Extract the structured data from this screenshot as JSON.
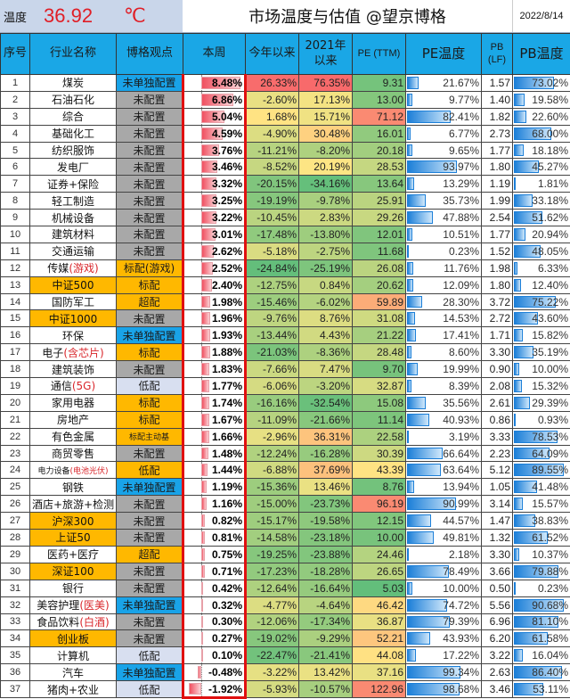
{
  "header": {
    "temp_label": "温度",
    "temp_value": "36.92",
    "temp_unit": "℃",
    "title": "市场温度与估值 @望京博格",
    "date": "2022/8/14"
  },
  "columns": {
    "idx": "序号",
    "name": "行业名称",
    "view": "博格观点",
    "week": "本周",
    "ytd": "今年以来",
    "since2021": "2021年以来",
    "pe": "PE (TTM)",
    "pe_temp": "PE温度",
    "pb": "PB (LF)",
    "pb_temp": "PB温度"
  },
  "colors": {
    "header_blue": "#1aa7e6",
    "temp_red": "#e01e26",
    "highlight_border": "#e01010",
    "orange": "#ffb800",
    "gray": "#a8a8a8",
    "blue_tag": "#19a3e8",
    "lavender": "#d8dff0"
  },
  "rows": [
    {
      "idx": "1",
      "name": "煤炭",
      "name_hl": "",
      "name_style": "",
      "view": "未单独配置",
      "view_style": "blue",
      "week": "8.48%",
      "ytd": "26.33%",
      "s2021": "76.35%",
      "pe": "9.31",
      "pe_temp": "21.67%",
      "pb": "1.57",
      "pb_temp": "73.02%"
    },
    {
      "idx": "2",
      "name": "石油石化",
      "name_hl": "",
      "name_style": "",
      "view": "未配置",
      "view_style": "gray",
      "week": "6.86%",
      "ytd": "-2.60%",
      "s2021": "17.13%",
      "pe": "13.00",
      "pe_temp": "9.77%",
      "pb": "1.40",
      "pb_temp": "19.58%"
    },
    {
      "idx": "3",
      "name": "综合",
      "name_hl": "",
      "name_style": "",
      "view": "未配置",
      "view_style": "gray",
      "week": "5.04%",
      "ytd": "1.68%",
      "s2021": "15.71%",
      "pe": "71.12",
      "pe_temp": "82.41%",
      "pb": "1.82",
      "pb_temp": "22.60%"
    },
    {
      "idx": "4",
      "name": "基础化工",
      "name_hl": "",
      "name_style": "",
      "view": "未配置",
      "view_style": "gray",
      "week": "4.59%",
      "ytd": "-4.90%",
      "s2021": "30.48%",
      "pe": "16.01",
      "pe_temp": "6.77%",
      "pb": "2.73",
      "pb_temp": "68.00%"
    },
    {
      "idx": "5",
      "name": "纺织服饰",
      "name_hl": "",
      "name_style": "",
      "view": "未配置",
      "view_style": "gray",
      "week": "3.76%",
      "ytd": "-11.21%",
      "s2021": "-8.20%",
      "pe": "20.18",
      "pe_temp": "9.65%",
      "pb": "1.77",
      "pb_temp": "18.18%"
    },
    {
      "idx": "6",
      "name": "发电厂",
      "name_hl": "",
      "name_style": "",
      "view": "未配置",
      "view_style": "gray",
      "week": "3.46%",
      "ytd": "-8.52%",
      "s2021": "20.19%",
      "pe": "28.53",
      "pe_temp": "93.97%",
      "pb": "1.80",
      "pb_temp": "45.27%"
    },
    {
      "idx": "7",
      "name": "证券+保险",
      "name_hl": "",
      "name_style": "",
      "view": "未配置",
      "view_style": "gray",
      "week": "3.32%",
      "ytd": "-20.15%",
      "s2021": "-34.16%",
      "pe": "13.64",
      "pe_temp": "13.29%",
      "pb": "1.19",
      "pb_temp": "1.81%"
    },
    {
      "idx": "8",
      "name": "轻工制造",
      "name_hl": "",
      "name_style": "",
      "view": "未配置",
      "view_style": "gray",
      "week": "3.25%",
      "ytd": "-19.19%",
      "s2021": "-9.78%",
      "pe": "25.91",
      "pe_temp": "35.73%",
      "pb": "1.99",
      "pb_temp": "33.18%"
    },
    {
      "idx": "9",
      "name": "机械设备",
      "name_hl": "",
      "name_style": "",
      "view": "未配置",
      "view_style": "gray",
      "week": "3.22%",
      "ytd": "-10.45%",
      "s2021": "2.83%",
      "pe": "29.26",
      "pe_temp": "47.88%",
      "pb": "2.54",
      "pb_temp": "51.62%"
    },
    {
      "idx": "10",
      "name": "建筑材料",
      "name_hl": "",
      "name_style": "",
      "view": "未配置",
      "view_style": "gray",
      "week": "3.01%",
      "ytd": "-17.48%",
      "s2021": "-13.80%",
      "pe": "12.01",
      "pe_temp": "10.51%",
      "pb": "1.77",
      "pb_temp": "20.94%"
    },
    {
      "idx": "11",
      "name": "交通运输",
      "name_hl": "",
      "name_style": "",
      "view": "未配置",
      "view_style": "gray",
      "week": "2.62%",
      "ytd": "-5.18%",
      "s2021": "-2.75%",
      "pe": "11.68",
      "pe_temp": "0.23%",
      "pb": "1.52",
      "pb_temp": "48.05%"
    },
    {
      "idx": "12",
      "name": "传媒",
      "name_hl": "(游戏)",
      "name_style": "",
      "view": "标配(游戏)",
      "view_style": "orange",
      "week": "2.52%",
      "ytd": "-24.84%",
      "s2021": "-25.19%",
      "pe": "26.08",
      "pe_temp": "11.76%",
      "pb": "1.98",
      "pb_temp": "6.33%"
    },
    {
      "idx": "13",
      "name": "中证500",
      "name_hl": "",
      "name_style": "orange",
      "view": "标配",
      "view_style": "orange",
      "week": "2.40%",
      "ytd": "-12.75%",
      "s2021": "0.84%",
      "pe": "20.62",
      "pe_temp": "12.09%",
      "pb": "1.80",
      "pb_temp": "12.40%"
    },
    {
      "idx": "14",
      "name": "国防军工",
      "name_hl": "",
      "name_style": "",
      "view": "超配",
      "view_style": "orange",
      "week": "1.98%",
      "ytd": "-15.46%",
      "s2021": "-6.02%",
      "pe": "59.89",
      "pe_temp": "28.30%",
      "pb": "3.72",
      "pb_temp": "75.22%"
    },
    {
      "idx": "15",
      "name": "中证1000",
      "name_hl": "",
      "name_style": "orange",
      "view": "未配置",
      "view_style": "gray",
      "week": "1.96%",
      "ytd": "-9.76%",
      "s2021": "8.76%",
      "pe": "31.08",
      "pe_temp": "14.53%",
      "pb": "2.72",
      "pb_temp": "43.60%"
    },
    {
      "idx": "16",
      "name": "环保",
      "name_hl": "",
      "name_style": "",
      "view": "未单独配置",
      "view_style": "blue",
      "week": "1.93%",
      "ytd": "-13.44%",
      "s2021": "4.43%",
      "pe": "21.22",
      "pe_temp": "17.41%",
      "pb": "1.71",
      "pb_temp": "15.82%"
    },
    {
      "idx": "17",
      "name": "电子",
      "name_hl": "(含芯片)",
      "name_style": "",
      "view": "标配",
      "view_style": "orange",
      "week": "1.88%",
      "ytd": "-21.03%",
      "s2021": "-8.36%",
      "pe": "28.48",
      "pe_temp": "8.60%",
      "pb": "3.30",
      "pb_temp": "35.19%"
    },
    {
      "idx": "18",
      "name": "建筑装饰",
      "name_hl": "",
      "name_style": "",
      "view": "未配置",
      "view_style": "gray",
      "week": "1.83%",
      "ytd": "-7.66%",
      "s2021": "7.47%",
      "pe": "9.70",
      "pe_temp": "19.99%",
      "pb": "0.90",
      "pb_temp": "10.00%"
    },
    {
      "idx": "19",
      "name": "通信",
      "name_hl": "(5G)",
      "name_style": "",
      "view": "低配",
      "view_style": "lav",
      "week": "1.77%",
      "ytd": "-6.06%",
      "s2021": "-3.20%",
      "pe": "32.87",
      "pe_temp": "8.39%",
      "pb": "2.08",
      "pb_temp": "15.32%"
    },
    {
      "idx": "20",
      "name": "家用电器",
      "name_hl": "",
      "name_style": "",
      "view": "标配",
      "view_style": "orange",
      "week": "1.74%",
      "ytd": "-16.16%",
      "s2021": "-32.54%",
      "pe": "15.08",
      "pe_temp": "35.56%",
      "pb": "2.61",
      "pb_temp": "29.39%"
    },
    {
      "idx": "21",
      "name": "房地产",
      "name_hl": "",
      "name_style": "",
      "view": "标配",
      "view_style": "orange",
      "week": "1.67%",
      "ytd": "-11.09%",
      "s2021": "-21.66%",
      "pe": "11.14",
      "pe_temp": "40.93%",
      "pb": "0.86",
      "pb_temp": "0.93%"
    },
    {
      "idx": "22",
      "name": "有色金属",
      "name_hl": "",
      "name_style": "",
      "view": "标配主动基",
      "view_style": "orange tiny",
      "week": "1.66%",
      "ytd": "-2.96%",
      "s2021": "36.31%",
      "pe": "22.58",
      "pe_temp": "3.19%",
      "pb": "3.33",
      "pb_temp": "78.53%"
    },
    {
      "idx": "23",
      "name": "商贸零售",
      "name_hl": "",
      "name_style": "",
      "view": "未配置",
      "view_style": "gray",
      "week": "1.48%",
      "ytd": "-12.24%",
      "s2021": "-16.28%",
      "pe": "30.39",
      "pe_temp": "66.64%",
      "pb": "2.23",
      "pb_temp": "64.09%"
    },
    {
      "idx": "24",
      "name": "电力设备",
      "name_hl": "(电池光伏)",
      "name_style": "tiny",
      "view": "低配",
      "view_style": "orange",
      "week": "1.44%",
      "ytd": "-6.88%",
      "s2021": "37.69%",
      "pe": "43.39",
      "pe_temp": "63.64%",
      "pb": "5.12",
      "pb_temp": "89.55%"
    },
    {
      "idx": "25",
      "name": "钢铁",
      "name_hl": "",
      "name_style": "",
      "view": "未单独配置",
      "view_style": "blue",
      "week": "1.19%",
      "ytd": "-15.36%",
      "s2021": "13.46%",
      "pe": "8.76",
      "pe_temp": "13.94%",
      "pb": "1.05",
      "pb_temp": "41.48%"
    },
    {
      "idx": "26",
      "name": "酒店+旅游+检测",
      "name_hl": "",
      "name_style": "",
      "view": "未配置",
      "view_style": "gray",
      "week": "1.16%",
      "ytd": "-15.00%",
      "s2021": "-23.73%",
      "pe": "96.19",
      "pe_temp": "90.99%",
      "pb": "3.14",
      "pb_temp": "15.57%"
    },
    {
      "idx": "27",
      "name": "沪深300",
      "name_hl": "",
      "name_style": "orange",
      "view": "未配置",
      "view_style": "gray",
      "week": "0.82%",
      "ytd": "-15.17%",
      "s2021": "-19.58%",
      "pe": "12.15",
      "pe_temp": "44.57%",
      "pb": "1.47",
      "pb_temp": "38.83%"
    },
    {
      "idx": "28",
      "name": "上证50",
      "name_hl": "",
      "name_style": "orange",
      "view": "未配置",
      "view_style": "gray",
      "week": "0.81%",
      "ytd": "-14.58%",
      "s2021": "-23.18%",
      "pe": "10.00",
      "pe_temp": "49.81%",
      "pb": "1.32",
      "pb_temp": "61.52%"
    },
    {
      "idx": "29",
      "name": "医药+医疗",
      "name_hl": "",
      "name_style": "",
      "view": "超配",
      "view_style": "orange",
      "week": "0.75%",
      "ytd": "-19.25%",
      "s2021": "-23.88%",
      "pe": "24.46",
      "pe_temp": "2.18%",
      "pb": "3.30",
      "pb_temp": "10.37%"
    },
    {
      "idx": "30",
      "name": "深证100",
      "name_hl": "",
      "name_style": "orange",
      "view": "未配置",
      "view_style": "gray",
      "week": "0.71%",
      "ytd": "-17.23%",
      "s2021": "-18.28%",
      "pe": "26.65",
      "pe_temp": "78.49%",
      "pb": "3.66",
      "pb_temp": "79.88%"
    },
    {
      "idx": "31",
      "name": "银行",
      "name_hl": "",
      "name_style": "",
      "view": "未配置",
      "view_style": "gray",
      "week": "0.42%",
      "ytd": "-12.64%",
      "s2021": "-16.64%",
      "pe": "5.03",
      "pe_temp": "10.00%",
      "pb": "0.50",
      "pb_temp": "0.23%"
    },
    {
      "idx": "32",
      "name": "美容护理",
      "name_hl": "(医美)",
      "name_style": "",
      "view": "未单独配置",
      "view_style": "blue",
      "week": "0.32%",
      "ytd": "-4.77%",
      "s2021": "-4.64%",
      "pe": "46.42",
      "pe_temp": "74.72%",
      "pb": "5.56",
      "pb_temp": "90.68%"
    },
    {
      "idx": "33",
      "name": "食品饮料",
      "name_hl": "(白酒)",
      "name_style": "",
      "view": "未配置",
      "view_style": "gray",
      "week": "0.30%",
      "ytd": "-12.06%",
      "s2021": "-17.34%",
      "pe": "36.87",
      "pe_temp": "79.39%",
      "pb": "6.96",
      "pb_temp": "81.10%"
    },
    {
      "idx": "34",
      "name": "创业板",
      "name_hl": "",
      "name_style": "orange",
      "view": "未配置",
      "view_style": "gray",
      "week": "0.27%",
      "ytd": "-19.02%",
      "s2021": "-9.29%",
      "pe": "52.21",
      "pe_temp": "43.93%",
      "pb": "6.20",
      "pb_temp": "61.58%"
    },
    {
      "idx": "35",
      "name": "计算机",
      "name_hl": "",
      "name_style": "",
      "view": "低配",
      "view_style": "lav",
      "week": "0.10%",
      "ytd": "-22.47%",
      "s2021": "-21.41%",
      "pe": "44.08",
      "pe_temp": "17.22%",
      "pb": "3.22",
      "pb_temp": "16.04%"
    },
    {
      "idx": "36",
      "name": "汽车",
      "name_hl": "",
      "name_style": "",
      "view": "未单独配置",
      "view_style": "blue",
      "week": "-0.48%",
      "ytd": "-3.22%",
      "s2021": "13.42%",
      "pe": "37.16",
      "pe_temp": "99.34%",
      "pb": "2.63",
      "pb_temp": "86.40%"
    },
    {
      "idx": "37",
      "name": "猪肉+农业",
      "name_hl": "",
      "name_style": "",
      "view": "低配",
      "view_style": "lav",
      "week": "-1.92%",
      "ytd": "-5.93%",
      "s2021": "-10.57%",
      "pe": "122.96",
      "pe_temp": "98.68%",
      "pb": "3.46",
      "pb_temp": "53.11%"
    }
  ]
}
